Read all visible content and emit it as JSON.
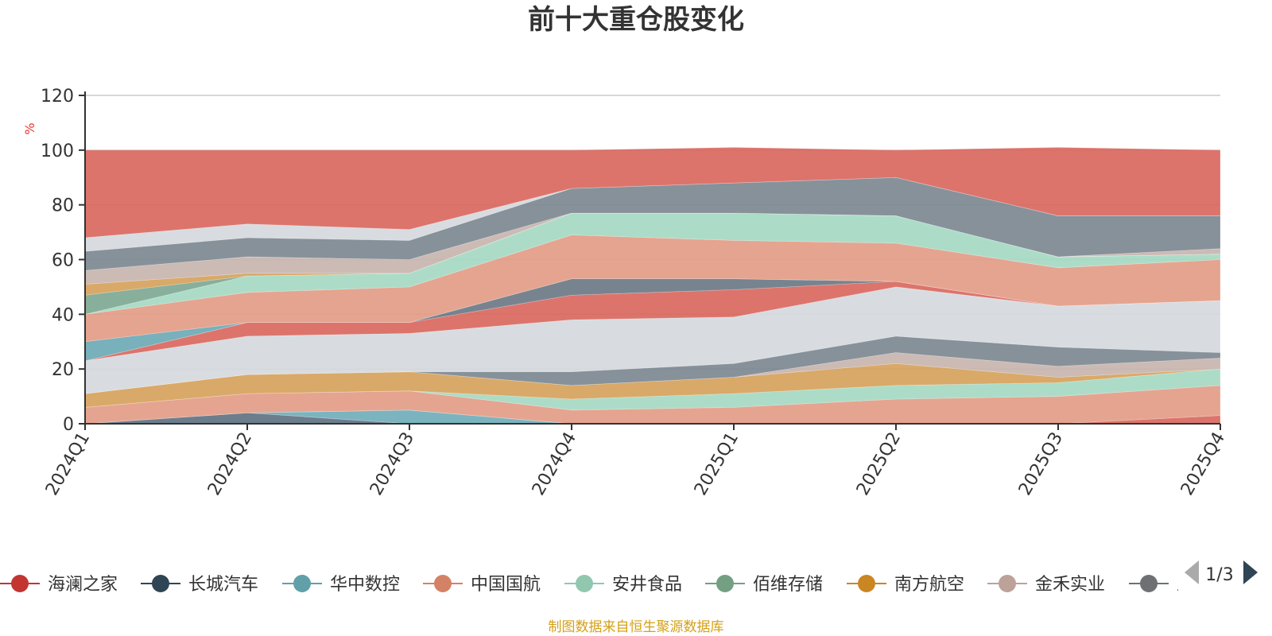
{
  "chart_data": {
    "type": "area",
    "stacked": true,
    "title": "前十大重仓股变化",
    "ylabel": "%",
    "ylim": [
      0,
      120
    ],
    "yticks": [
      0,
      20,
      40,
      60,
      80,
      100,
      120
    ],
    "categories": [
      "2024Q1",
      "2024Q2",
      "2024Q3",
      "2024Q4",
      "2025Q1",
      "2025Q2",
      "2025Q3",
      "2025Q4"
    ],
    "grid": true,
    "legend_position": "bottom",
    "legend_page": "1/3",
    "source_note": "制图数据来自恒生聚源数据库",
    "layers": [
      {
        "color": "#5f7282",
        "values": [
          0,
          4,
          0,
          0,
          0,
          0,
          0,
          0
        ]
      },
      {
        "color": "#70aeba",
        "values": [
          0,
          0,
          5,
          0,
          0,
          0,
          0,
          0
        ]
      },
      {
        "color": "#d9685f",
        "values": [
          0,
          0,
          0,
          0,
          0,
          0,
          0,
          3
        ]
      },
      {
        "color": "#e39c87",
        "values": [
          6,
          7,
          7,
          5,
          6,
          9,
          10,
          11
        ]
      },
      {
        "color": "#a5d9c2",
        "values": [
          0,
          0,
          0,
          4,
          5,
          5,
          5,
          6
        ]
      },
      {
        "color": "#d6a25c",
        "values": [
          5,
          7,
          7,
          5,
          6,
          8,
          2,
          0
        ]
      },
      {
        "color": "#c8b4ae",
        "values": [
          0,
          0,
          0,
          0,
          0,
          4,
          4,
          4
        ]
      },
      {
        "color": "#7d8891",
        "values": [
          0,
          0,
          0,
          5,
          5,
          6,
          7,
          2
        ]
      },
      {
        "color": "#d5d9dd",
        "values": [
          12,
          14,
          14,
          19,
          17,
          18,
          15,
          19
        ]
      },
      {
        "color": "#d9685f",
        "values": [
          0,
          5,
          4,
          9,
          10,
          2,
          0,
          0
        ]
      },
      {
        "color": "#6b7986",
        "values": [
          0,
          0,
          0,
          6,
          4,
          0,
          0,
          0
        ]
      },
      {
        "color": "#6da9b5",
        "values": [
          7,
          0,
          0,
          0,
          0,
          0,
          0,
          0
        ]
      },
      {
        "color": "#e39c87",
        "values": [
          10,
          11,
          13,
          16,
          14,
          14,
          14,
          15
        ]
      },
      {
        "color": "#a5d9c2",
        "values": [
          0,
          6,
          5,
          8,
          10,
          10,
          4,
          2
        ]
      },
      {
        "color": "#7ea892",
        "values": [
          7,
          0,
          0,
          0,
          0,
          0,
          0,
          0
        ]
      },
      {
        "color": "#d6a25c",
        "values": [
          4,
          1,
          0,
          0,
          0,
          0,
          0,
          0
        ]
      },
      {
        "color": "#c8b4ae",
        "values": [
          5,
          6,
          5,
          0,
          0,
          0,
          0,
          2
        ]
      },
      {
        "color": "#7d8891",
        "values": [
          7,
          7,
          7,
          9,
          11,
          14,
          15,
          12
        ]
      },
      {
        "color": "#d5d9dd",
        "values": [
          5,
          5,
          4,
          0,
          0,
          0,
          0,
          0
        ]
      },
      {
        "color": "#d9685f",
        "values": [
          32,
          27,
          29,
          14,
          13,
          10,
          25,
          24
        ]
      }
    ],
    "series": [
      {
        "name": "海澜之家",
        "color": "#c23531"
      },
      {
        "name": "长城汽车",
        "color": "#2f4554"
      },
      {
        "name": "华中数控",
        "color": "#61a0a8"
      },
      {
        "name": "中国国航",
        "color": "#d48265"
      },
      {
        "name": "安井食品",
        "color": "#91c7ae"
      },
      {
        "name": "佰维存储",
        "color": "#749f83"
      },
      {
        "name": "南方航空",
        "color": "#ca8622"
      },
      {
        "name": "金禾实业",
        "color": "#bda29a"
      },
      {
        "name": "立",
        "color": "#6e7074"
      }
    ]
  }
}
